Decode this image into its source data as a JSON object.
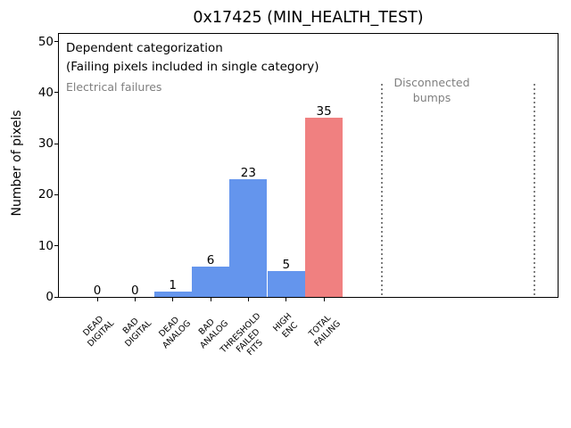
{
  "figure": {
    "title": "0x17425 (MIN_HEALTH_TEST)"
  },
  "annotations": {
    "dependent_line1": "Dependent categorization",
    "dependent_line2": "(Failing pixels included in single category)",
    "electrical_failures": "Electrical failures",
    "disconnected_bumps": "Disconnected\nbumps"
  },
  "colors": {
    "bar_default": "#6495ed",
    "bar_total_failing": "#f08080",
    "annotation_gray": "#7f7f7f",
    "dotted_separator": "#7f7f7f",
    "axis": "#000000",
    "background": "#ffffff"
  },
  "chart_data": {
    "type": "bar",
    "title": "0x17425 (MIN_HEALTH_TEST)",
    "xlabel": "",
    "ylabel": "Number of pixels",
    "categories": [
      "DEAD\nDIGITAL",
      "BAD\nDIGITAL",
      "DEAD\nANALOG",
      "BAD\nANALOG",
      "THRESHOLD\nFAILED\nFITS",
      "HIGH\nENC",
      "TOTAL\nFAILING"
    ],
    "values": [
      0,
      0,
      1,
      6,
      23,
      5,
      35
    ],
    "bar_value_labels": [
      "0",
      "0",
      "1",
      "6",
      "23",
      "5",
      "35"
    ],
    "bar_colors": [
      "#6495ed",
      "#6495ed",
      "#6495ed",
      "#6495ed",
      "#6495ed",
      "#6495ed",
      "#f08080"
    ],
    "yticks": [
      0,
      10,
      20,
      30,
      40,
      50
    ],
    "ylim": [
      0,
      51.6
    ],
    "grid": false,
    "legend": null,
    "annotations": [
      "Dependent categorization",
      "(Failing pixels included in single category)",
      "Electrical failures",
      "Disconnected bumps"
    ],
    "region_separators": {
      "style": "dotted",
      "count": 2,
      "top_value": 41.5,
      "note": "two vertical dotted lines to the right of the TOTAL FAILING bar delimiting the Disconnected bumps region"
    }
  }
}
